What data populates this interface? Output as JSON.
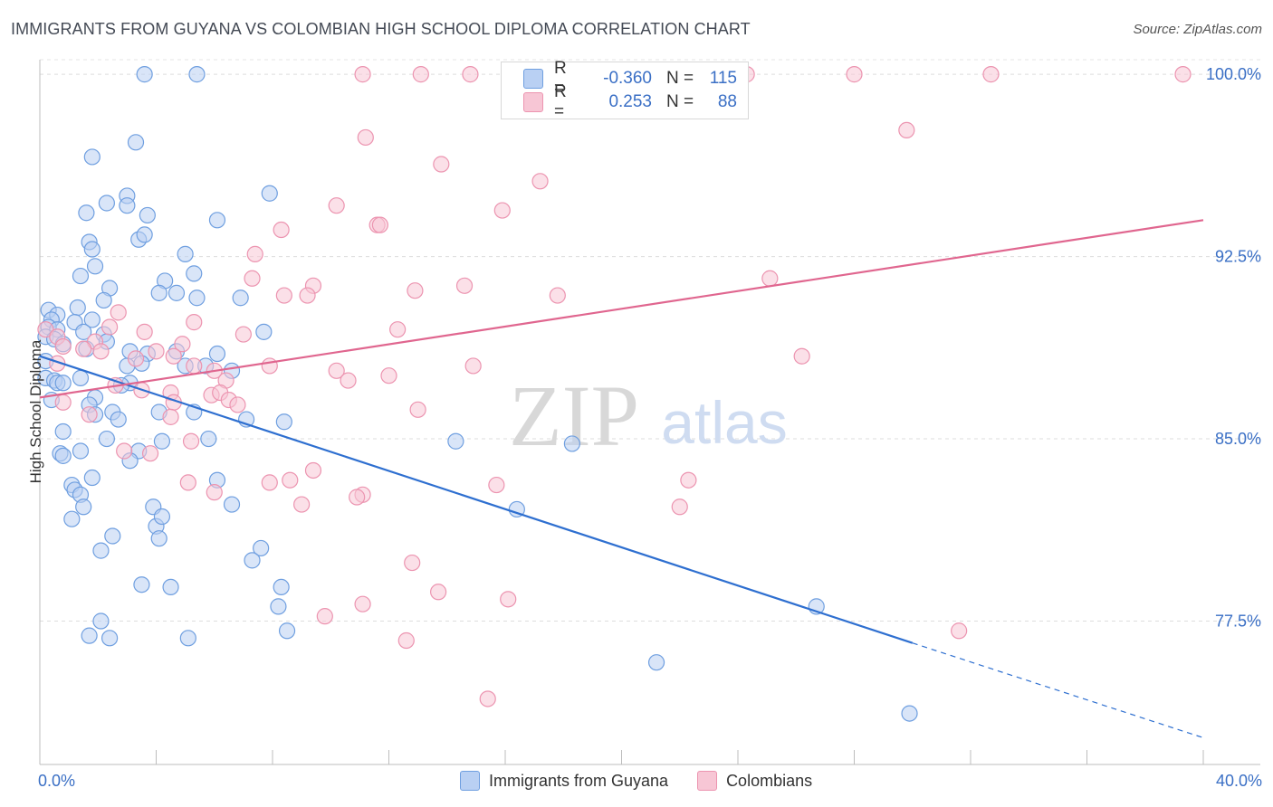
{
  "title": "IMMIGRANTS FROM GUYANA VS COLOMBIAN HIGH SCHOOL DIPLOMA CORRELATION CHART",
  "source": "Source: ZipAtlas.com",
  "watermark": {
    "zip": "ZIP",
    "atlas": "atlas"
  },
  "legend_top": {
    "rows": [
      {
        "r_label": "R =",
        "r_value": "-0.360",
        "n_label": "N =",
        "n_value": "115"
      },
      {
        "r_label": "R =",
        "r_value": "0.253",
        "n_label": "N =",
        "n_value": "88"
      }
    ]
  },
  "chart_data": {
    "type": "scatter",
    "title": "IMMIGRANTS FROM GUYANA VS COLOMBIAN HIGH SCHOOL DIPLOMA CORRELATION CHART",
    "xlabel": "",
    "ylabel": "High School Diploma",
    "xlim": [
      0,
      40
    ],
    "ylim": [
      71.6,
      100.6
    ],
    "x_tick_labels": [
      "0.0%",
      "40.0%"
    ],
    "y_ticks": [
      77.5,
      85.0,
      92.5,
      100.0
    ],
    "y_tick_labels": [
      "77.5%",
      "85.0%",
      "92.5%",
      "100.0%"
    ],
    "grid": true,
    "legend": "bottom-center",
    "series": [
      {
        "name": "Immigrants from Guyana",
        "color": "#6f9fe0",
        "fill": "#b9d0f3",
        "R": -0.36,
        "N": 115,
        "trend": {
          "x0": 0.0,
          "y0": 88.4,
          "x1": 30.0,
          "y1": 76.6,
          "dash_to_x": 40.0,
          "dash_to_y": 72.7
        },
        "points": [
          [
            3.6,
            100.0
          ],
          [
            5.4,
            100.0
          ],
          [
            1.8,
            96.6
          ],
          [
            3.3,
            97.2
          ],
          [
            2.3,
            94.7
          ],
          [
            3.0,
            95.0
          ],
          [
            3.0,
            94.6
          ],
          [
            3.7,
            94.2
          ],
          [
            1.6,
            94.3
          ],
          [
            6.1,
            94.0
          ],
          [
            7.9,
            95.1
          ],
          [
            1.7,
            93.1
          ],
          [
            3.4,
            93.2
          ],
          [
            3.6,
            93.4
          ],
          [
            1.8,
            92.8
          ],
          [
            5.0,
            92.6
          ],
          [
            1.9,
            92.1
          ],
          [
            1.4,
            91.7
          ],
          [
            4.3,
            91.5
          ],
          [
            5.3,
            91.8
          ],
          [
            2.4,
            91.2
          ],
          [
            4.1,
            91.0
          ],
          [
            4.7,
            91.0
          ],
          [
            5.4,
            90.8
          ],
          [
            6.9,
            90.8
          ],
          [
            2.2,
            90.7
          ],
          [
            1.3,
            90.4
          ],
          [
            0.3,
            90.3
          ],
          [
            0.6,
            90.1
          ],
          [
            0.4,
            89.9
          ],
          [
            1.2,
            89.8
          ],
          [
            1.8,
            89.9
          ],
          [
            0.3,
            89.6
          ],
          [
            0.6,
            89.5
          ],
          [
            1.5,
            89.4
          ],
          [
            2.2,
            89.3
          ],
          [
            0.2,
            89.2
          ],
          [
            0.5,
            89.1
          ],
          [
            0.8,
            88.9
          ],
          [
            2.3,
            89.0
          ],
          [
            7.7,
            89.4
          ],
          [
            1.6,
            88.7
          ],
          [
            3.1,
            88.6
          ],
          [
            3.7,
            88.5
          ],
          [
            4.7,
            88.6
          ],
          [
            6.1,
            88.5
          ],
          [
            0.2,
            88.2
          ],
          [
            3.0,
            88.0
          ],
          [
            3.5,
            88.1
          ],
          [
            5.0,
            88.0
          ],
          [
            5.7,
            88.0
          ],
          [
            6.6,
            87.8
          ],
          [
            0.2,
            87.5
          ],
          [
            0.5,
            87.4
          ],
          [
            1.4,
            87.5
          ],
          [
            3.1,
            87.3
          ],
          [
            0.6,
            87.3
          ],
          [
            0.8,
            87.3
          ],
          [
            2.8,
            87.2
          ],
          [
            1.9,
            86.7
          ],
          [
            0.4,
            86.6
          ],
          [
            1.7,
            86.4
          ],
          [
            2.5,
            86.1
          ],
          [
            1.9,
            86.0
          ],
          [
            2.7,
            85.8
          ],
          [
            4.1,
            86.1
          ],
          [
            5.3,
            86.1
          ],
          [
            7.1,
            85.8
          ],
          [
            8.4,
            85.7
          ],
          [
            0.8,
            85.3
          ],
          [
            2.3,
            85.0
          ],
          [
            4.2,
            84.9
          ],
          [
            5.8,
            85.0
          ],
          [
            14.3,
            84.9
          ],
          [
            18.3,
            84.8
          ],
          [
            0.7,
            84.4
          ],
          [
            1.4,
            84.5
          ],
          [
            3.4,
            84.5
          ],
          [
            3.1,
            84.1
          ],
          [
            0.8,
            84.3
          ],
          [
            1.8,
            83.4
          ],
          [
            1.1,
            83.1
          ],
          [
            1.2,
            82.9
          ],
          [
            6.1,
            83.3
          ],
          [
            1.4,
            82.7
          ],
          [
            1.5,
            82.2
          ],
          [
            3.9,
            82.2
          ],
          [
            6.6,
            82.3
          ],
          [
            16.4,
            82.1
          ],
          [
            1.1,
            81.7
          ],
          [
            4.0,
            81.4
          ],
          [
            4.2,
            81.8
          ],
          [
            2.5,
            81.0
          ],
          [
            4.1,
            80.9
          ],
          [
            2.1,
            80.4
          ],
          [
            7.6,
            80.5
          ],
          [
            7.3,
            80.0
          ],
          [
            3.5,
            79.0
          ],
          [
            4.5,
            78.9
          ],
          [
            8.3,
            78.9
          ],
          [
            8.2,
            78.1
          ],
          [
            26.7,
            78.1
          ],
          [
            2.1,
            77.5
          ],
          [
            1.7,
            76.9
          ],
          [
            2.4,
            76.8
          ],
          [
            5.1,
            76.8
          ],
          [
            8.5,
            77.1
          ],
          [
            21.2,
            75.8
          ],
          [
            29.9,
            73.7
          ]
        ]
      },
      {
        "name": "Colombians",
        "color": "#ec94b0",
        "fill": "#f7c6d5",
        "R": 0.253,
        "N": 88,
        "trend": {
          "x0": 0.0,
          "y0": 86.7,
          "x1": 40.0,
          "y1": 94.0
        },
        "points": [
          [
            11.1,
            100.0
          ],
          [
            13.1,
            100.0
          ],
          [
            14.8,
            100.0
          ],
          [
            24.3,
            100.0
          ],
          [
            28.0,
            100.0
          ],
          [
            32.7,
            100.0
          ],
          [
            39.3,
            100.0
          ],
          [
            29.8,
            97.7
          ],
          [
            11.2,
            97.4
          ],
          [
            13.8,
            96.3
          ],
          [
            17.2,
            95.6
          ],
          [
            10.2,
            94.6
          ],
          [
            15.9,
            94.4
          ],
          [
            11.6,
            93.8
          ],
          [
            11.7,
            93.8
          ],
          [
            8.3,
            93.6
          ],
          [
            7.4,
            92.6
          ],
          [
            25.1,
            91.6
          ],
          [
            7.3,
            91.6
          ],
          [
            9.4,
            91.3
          ],
          [
            14.6,
            91.3
          ],
          [
            12.9,
            91.1
          ],
          [
            17.8,
            90.9
          ],
          [
            8.4,
            90.9
          ],
          [
            9.2,
            90.9
          ],
          [
            2.7,
            90.2
          ],
          [
            5.3,
            89.8
          ],
          [
            0.2,
            89.5
          ],
          [
            2.4,
            89.6
          ],
          [
            12.3,
            89.5
          ],
          [
            3.6,
            89.4
          ],
          [
            7.0,
            89.3
          ],
          [
            0.6,
            89.2
          ],
          [
            1.9,
            89.0
          ],
          [
            4.9,
            88.9
          ],
          [
            0.8,
            88.8
          ],
          [
            1.5,
            88.7
          ],
          [
            2.1,
            88.6
          ],
          [
            4.0,
            88.6
          ],
          [
            4.6,
            88.4
          ],
          [
            3.3,
            88.3
          ],
          [
            0.6,
            88.1
          ],
          [
            26.2,
            88.4
          ],
          [
            5.3,
            88.0
          ],
          [
            6.0,
            87.8
          ],
          [
            7.9,
            88.0
          ],
          [
            14.9,
            88.0
          ],
          [
            10.2,
            87.8
          ],
          [
            12.0,
            87.6
          ],
          [
            6.4,
            87.4
          ],
          [
            10.6,
            87.4
          ],
          [
            2.6,
            87.2
          ],
          [
            3.5,
            87.0
          ],
          [
            4.5,
            86.9
          ],
          [
            5.9,
            86.8
          ],
          [
            6.2,
            86.9
          ],
          [
            6.5,
            86.6
          ],
          [
            0.8,
            86.5
          ],
          [
            4.6,
            86.5
          ],
          [
            13.0,
            86.2
          ],
          [
            1.7,
            86.0
          ],
          [
            4.5,
            85.9
          ],
          [
            6.8,
            86.4
          ],
          [
            5.2,
            84.9
          ],
          [
            2.9,
            84.5
          ],
          [
            3.8,
            84.4
          ],
          [
            9.4,
            83.7
          ],
          [
            5.1,
            83.2
          ],
          [
            7.9,
            83.2
          ],
          [
            8.6,
            83.3
          ],
          [
            15.7,
            83.1
          ],
          [
            22.3,
            83.3
          ],
          [
            11.1,
            82.7
          ],
          [
            10.9,
            82.6
          ],
          [
            6.0,
            82.8
          ],
          [
            9.0,
            82.3
          ],
          [
            22.0,
            82.2
          ],
          [
            12.8,
            79.9
          ],
          [
            13.7,
            78.7
          ],
          [
            11.1,
            78.2
          ],
          [
            16.1,
            78.4
          ],
          [
            9.8,
            77.7
          ],
          [
            12.6,
            76.7
          ],
          [
            31.6,
            77.1
          ],
          [
            15.4,
            74.3
          ]
        ]
      }
    ]
  },
  "legend_bottom": {
    "items": [
      "Immigrants from Guyana",
      "Colombians"
    ]
  }
}
